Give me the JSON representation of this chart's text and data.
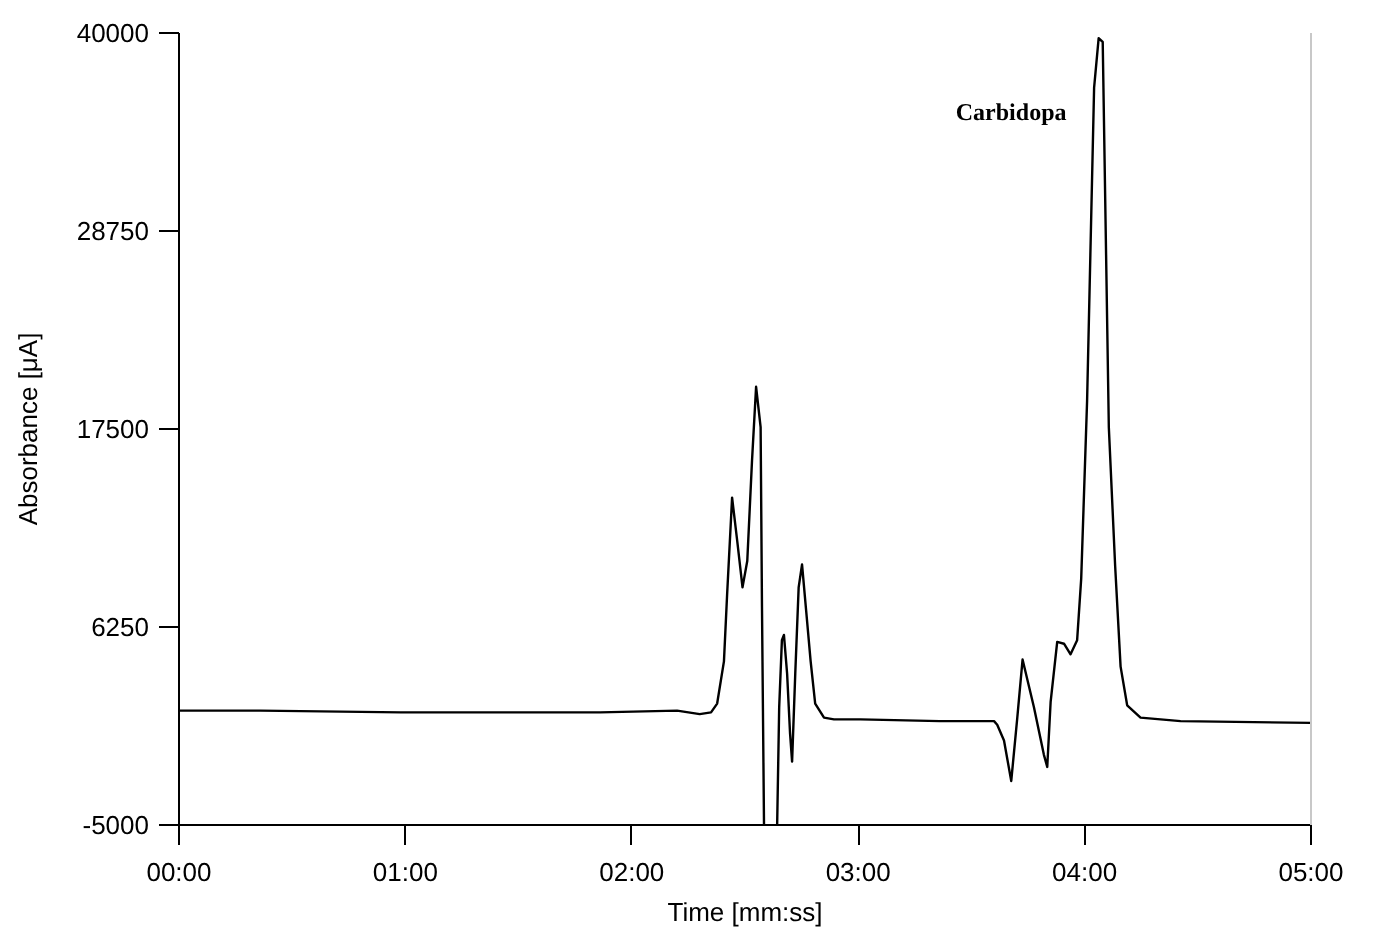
{
  "chart_data": {
    "type": "line",
    "xlabel": "Time [mm:ss]",
    "ylabel": "Absorbance [μA]",
    "xlim": [
      0,
      5
    ],
    "ylim": [
      -5000,
      40000
    ],
    "xticks": [
      {
        "value": 0,
        "label": "00:00"
      },
      {
        "value": 1,
        "label": "01:00"
      },
      {
        "value": 2,
        "label": "02:00"
      },
      {
        "value": 3,
        "label": "03:00"
      },
      {
        "value": 4,
        "label": "04:00"
      },
      {
        "value": 5,
        "label": "05:00"
      }
    ],
    "yticks": [
      -5000,
      6250,
      17500,
      28750,
      40000
    ],
    "grid": false,
    "line_style": "solid",
    "annotations": [
      "Carbidopa"
    ],
    "x": [
      0,
      0.36,
      0.98,
      1.42,
      1.86,
      2.2,
      2.3,
      2.35,
      2.377,
      2.407,
      2.421,
      2.443,
      2.466,
      2.489,
      2.51,
      2.531,
      2.549,
      2.569,
      2.575,
      2.584,
      2.61,
      2.642,
      2.651,
      2.663,
      2.672,
      2.686,
      2.699,
      2.708,
      2.722,
      2.737,
      2.752,
      2.77,
      2.79,
      2.81,
      2.849,
      2.893,
      3.01,
      3.36,
      3.6,
      3.614,
      3.644,
      3.676,
      3.702,
      3.726,
      3.776,
      3.82,
      3.835,
      3.85,
      3.879,
      3.909,
      3.938,
      3.967,
      3.985,
      4.011,
      4.042,
      4.062,
      4.08,
      4.107,
      4.135,
      4.159,
      4.188,
      4.247,
      4.424,
      5.0
    ],
    "series": [
      {
        "color": "#000000",
        "values": [
          1500,
          1500,
          1400,
          1400,
          1400,
          1500,
          1300,
          1400,
          1900,
          4300,
          8100,
          13600,
          11100,
          8500,
          10000,
          15700,
          19900,
          17600,
          7400,
          -5000,
          null,
          -5000,
          1700,
          5500,
          5800,
          3600,
          200,
          -1400,
          3600,
          8500,
          9800,
          7200,
          4300,
          1900,
          1100,
          1000,
          1000,
          900,
          900,
          700,
          -200,
          -2500,
          1000,
          4400,
          1700,
          -1000,
          -1700,
          2000,
          5400,
          5300,
          4700,
          5500,
          9000,
          19100,
          36900,
          39700,
          39500,
          17600,
          9700,
          4000,
          1800,
          1100,
          900,
          800
        ]
      }
    ]
  }
}
